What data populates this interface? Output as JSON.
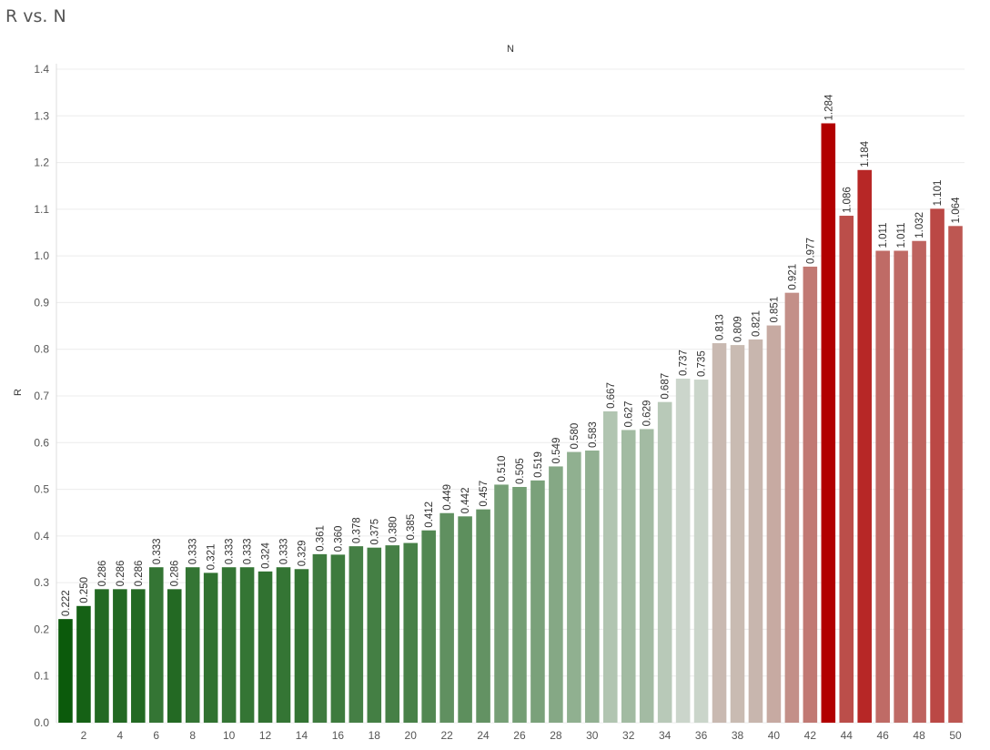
{
  "title": "R vs. N",
  "chart_data": {
    "type": "bar",
    "title": "R vs. N",
    "xlabel": "N",
    "ylabel": "R",
    "ylim": [
      0,
      1.4
    ],
    "yticks": [
      "0.0",
      "0.1",
      "0.2",
      "0.3",
      "0.4",
      "0.5",
      "0.6",
      "0.7",
      "0.8",
      "0.9",
      "1.0",
      "1.1",
      "1.2",
      "1.3",
      "1.4"
    ],
    "grid": true,
    "x_axis_position": "top",
    "categories": [
      1,
      2,
      3,
      4,
      5,
      6,
      7,
      8,
      9,
      10,
      11,
      12,
      13,
      14,
      15,
      16,
      17,
      18,
      19,
      20,
      21,
      22,
      23,
      24,
      25,
      26,
      27,
      28,
      29,
      30,
      31,
      32,
      33,
      34,
      35,
      36,
      37,
      38,
      39,
      40,
      41,
      42,
      43,
      44,
      45,
      46,
      47,
      48,
      49,
      50
    ],
    "xtick_labels": [
      "2",
      "4",
      "6",
      "8",
      "10",
      "12",
      "14",
      "16",
      "18",
      "20",
      "22",
      "24",
      "26",
      "28",
      "30",
      "32",
      "34",
      "36",
      "38",
      "40",
      "42",
      "44",
      "46",
      "48",
      "50"
    ],
    "values": [
      0.222,
      0.25,
      0.286,
      0.286,
      0.286,
      0.333,
      0.286,
      0.333,
      0.321,
      0.333,
      0.333,
      0.324,
      0.333,
      0.329,
      0.361,
      0.36,
      0.378,
      0.375,
      0.38,
      0.385,
      0.412,
      0.449,
      0.442,
      0.457,
      0.51,
      0.505,
      0.519,
      0.549,
      0.58,
      0.583,
      0.667,
      0.627,
      0.629,
      0.687,
      0.737,
      0.735,
      0.813,
      0.809,
      0.821,
      0.851,
      0.921,
      0.977,
      1.284,
      1.086,
      1.184,
      1.011,
      1.011,
      1.032,
      1.101,
      1.064
    ],
    "data_labels": [
      "0.222",
      "0.250",
      "0.286",
      "0.286",
      "0.286",
      "0.333",
      "0.286",
      "0.333",
      "0.321",
      "0.333",
      "0.333",
      "0.324",
      "0.333",
      "0.329",
      "0.361",
      "0.360",
      "0.378",
      "0.375",
      "0.380",
      "0.385",
      "0.412",
      "0.449",
      "0.442",
      "0.457",
      "0.510",
      "0.505",
      "0.519",
      "0.549",
      "0.580",
      "0.583",
      "0.667",
      "0.627",
      "0.629",
      "0.687",
      "0.737",
      "0.735",
      "0.813",
      "0.809",
      "0.821",
      "0.851",
      "0.921",
      "0.977",
      "1.284",
      "1.086",
      "1.184",
      "1.011",
      "1.011",
      "1.032",
      "1.101",
      "1.064"
    ],
    "color_scale": {
      "type": "diverging",
      "low_color": "#0b5a0b",
      "mid_color": "#ccd6cc",
      "high_color": "#b20000",
      "mid_value": 0.74
    }
  }
}
